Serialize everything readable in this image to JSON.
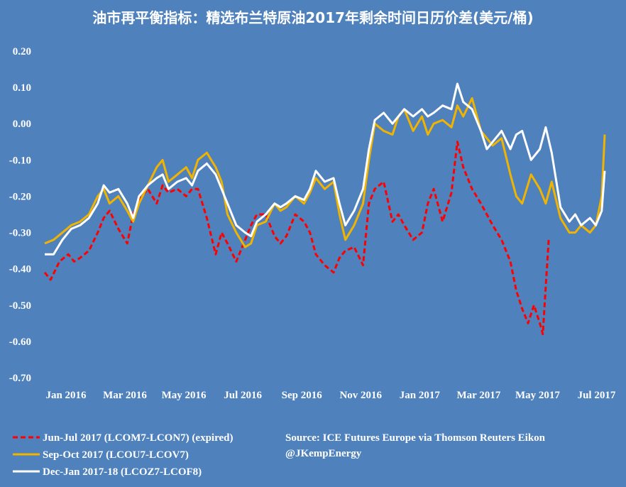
{
  "chart_data": {
    "type": "line",
    "title": "油市再平衡指标：精选布兰特原油2017年剩余时间日历价差(美元/桶)",
    "ylim": [
      -0.7,
      0.2
    ],
    "yticks": [
      "0.20",
      "0.10",
      "0.00",
      "-0.10",
      "-0.20",
      "-0.30",
      "-0.40",
      "-0.50",
      "-0.60",
      "-0.70"
    ],
    "ytick_values": [
      0.2,
      0.1,
      0.0,
      -0.1,
      -0.2,
      -0.3,
      -0.4,
      -0.5,
      -0.6,
      -0.7
    ],
    "xlim": [
      0,
      19
    ],
    "xticks": [
      "Jan 2016",
      "Mar 2016",
      "May 2016",
      "Jul 2016",
      "Sep 2016",
      "Nov 2016",
      "Jan 2017",
      "Mar 2017",
      "May 2017",
      "Jul 2017"
    ],
    "xtick_positions": [
      0,
      2,
      4,
      6,
      8,
      10,
      12,
      14,
      16,
      18
    ],
    "grid": false,
    "legend_position": "bottom-left",
    "series": [
      {
        "name": "Jun-Jul 2017 (LCOM7-LCON7) (expired)",
        "color": "#ff0000",
        "dash": true,
        "x": [
          0,
          0.2,
          0.5,
          0.8,
          1.0,
          1.2,
          1.5,
          1.8,
          2.0,
          2.2,
          2.5,
          2.8,
          3.0,
          3.2,
          3.5,
          3.8,
          4.0,
          4.2,
          4.5,
          4.8,
          5.0,
          5.2,
          5.5,
          5.8,
          6.0,
          6.2,
          6.5,
          6.8,
          7.0,
          7.2,
          7.5,
          7.8,
          8.0,
          8.2,
          8.5,
          8.8,
          9.0,
          9.2,
          9.5,
          9.8,
          10.0,
          10.2,
          10.5,
          10.8,
          11.0,
          11.2,
          11.5,
          11.8,
          12.0,
          12.2,
          12.5,
          12.8,
          13.0,
          13.2,
          13.5,
          13.8,
          14.0,
          14.2,
          14.5,
          14.8,
          15.0,
          15.2,
          15.5,
          15.8,
          16.0,
          16.2,
          16.4,
          16.6,
          16.8,
          16.9,
          17.0,
          17.1
        ],
        "y": [
          -0.41,
          -0.43,
          -0.38,
          -0.36,
          -0.38,
          -0.37,
          -0.35,
          -0.3,
          -0.26,
          -0.24,
          -0.29,
          -0.33,
          -0.25,
          -0.21,
          -0.18,
          -0.22,
          -0.17,
          -0.19,
          -0.18,
          -0.2,
          -0.18,
          -0.18,
          -0.26,
          -0.36,
          -0.3,
          -0.33,
          -0.38,
          -0.32,
          -0.28,
          -0.25,
          -0.25,
          -0.31,
          -0.33,
          -0.31,
          -0.25,
          -0.27,
          -0.3,
          -0.36,
          -0.39,
          -0.41,
          -0.37,
          -0.35,
          -0.34,
          -0.39,
          -0.22,
          -0.18,
          -0.16,
          -0.27,
          -0.25,
          -0.28,
          -0.32,
          -0.3,
          -0.22,
          -0.18,
          -0.27,
          -0.19,
          -0.05,
          -0.12,
          -0.18,
          -0.22,
          -0.25,
          -0.28,
          -0.32,
          -0.38,
          -0.46,
          -0.51,
          -0.55,
          -0.5,
          -0.55,
          -0.58,
          -0.45,
          -0.32
        ]
      },
      {
        "name": "Sep-Oct 2017 (LCOU7-LCOV7)",
        "color": "#f0b400",
        "dash": false,
        "x": [
          0,
          0.3,
          0.6,
          0.9,
          1.2,
          1.5,
          1.8,
          2.0,
          2.2,
          2.5,
          2.8,
          3.0,
          3.2,
          3.5,
          3.8,
          4.0,
          4.2,
          4.5,
          4.8,
          5.0,
          5.2,
          5.5,
          5.8,
          6.0,
          6.2,
          6.5,
          6.8,
          7.0,
          7.2,
          7.5,
          7.8,
          8.0,
          8.2,
          8.5,
          8.8,
          9.0,
          9.2,
          9.5,
          9.8,
          10.0,
          10.2,
          10.5,
          10.8,
          11.0,
          11.2,
          11.5,
          11.8,
          12.0,
          12.2,
          12.5,
          12.8,
          13.0,
          13.2,
          13.5,
          13.8,
          14.0,
          14.2,
          14.5,
          14.8,
          15.0,
          15.2,
          15.5,
          15.8,
          16.0,
          16.2,
          16.5,
          16.8,
          17.0,
          17.2,
          17.5,
          17.8,
          18.0,
          18.2,
          18.5,
          18.7,
          18.9,
          19.0
        ],
        "y": [
          -0.33,
          -0.32,
          -0.3,
          -0.28,
          -0.27,
          -0.25,
          -0.2,
          -0.18,
          -0.22,
          -0.2,
          -0.24,
          -0.27,
          -0.22,
          -0.17,
          -0.12,
          -0.1,
          -0.16,
          -0.14,
          -0.12,
          -0.15,
          -0.1,
          -0.08,
          -0.12,
          -0.16,
          -0.25,
          -0.3,
          -0.34,
          -0.33,
          -0.28,
          -0.27,
          -0.22,
          -0.24,
          -0.23,
          -0.2,
          -0.22,
          -0.19,
          -0.15,
          -0.18,
          -0.16,
          -0.25,
          -0.32,
          -0.28,
          -0.22,
          -0.1,
          0.0,
          -0.02,
          -0.03,
          0.02,
          0.04,
          -0.02,
          0.02,
          -0.03,
          0.0,
          0.01,
          -0.01,
          0.05,
          0.02,
          0.07,
          -0.02,
          -0.04,
          -0.06,
          -0.04,
          -0.14,
          -0.2,
          -0.22,
          -0.14,
          -0.18,
          -0.22,
          -0.16,
          -0.26,
          -0.3,
          -0.3,
          -0.28,
          -0.3,
          -0.28,
          -0.2,
          -0.03
        ]
      },
      {
        "name": "Dec-Jan 2017-18 (LCOZ7-LCOF8)",
        "color": "#ffffff",
        "dash": false,
        "x": [
          0,
          0.3,
          0.6,
          0.9,
          1.2,
          1.5,
          1.8,
          2.0,
          2.2,
          2.5,
          2.8,
          3.0,
          3.2,
          3.5,
          3.8,
          4.0,
          4.2,
          4.5,
          4.8,
          5.0,
          5.2,
          5.5,
          5.8,
          6.0,
          6.2,
          6.5,
          6.8,
          7.0,
          7.2,
          7.5,
          7.8,
          8.0,
          8.2,
          8.5,
          8.8,
          9.0,
          9.2,
          9.5,
          9.8,
          10.0,
          10.2,
          10.5,
          10.8,
          11.0,
          11.2,
          11.5,
          11.8,
          12.0,
          12.2,
          12.5,
          12.8,
          13.0,
          13.2,
          13.5,
          13.8,
          14.0,
          14.2,
          14.5,
          14.8,
          15.0,
          15.2,
          15.5,
          15.8,
          16.0,
          16.2,
          16.5,
          16.8,
          17.0,
          17.2,
          17.5,
          17.8,
          18.0,
          18.2,
          18.5,
          18.7,
          18.9,
          19.0
        ],
        "y": [
          -0.36,
          -0.36,
          -0.32,
          -0.29,
          -0.28,
          -0.26,
          -0.22,
          -0.17,
          -0.19,
          -0.18,
          -0.22,
          -0.26,
          -0.2,
          -0.17,
          -0.15,
          -0.14,
          -0.18,
          -0.16,
          -0.15,
          -0.17,
          -0.13,
          -0.11,
          -0.14,
          -0.18,
          -0.22,
          -0.28,
          -0.3,
          -0.31,
          -0.27,
          -0.25,
          -0.22,
          -0.23,
          -0.22,
          -0.2,
          -0.21,
          -0.18,
          -0.13,
          -0.16,
          -0.15,
          -0.22,
          -0.28,
          -0.24,
          -0.18,
          -0.07,
          0.01,
          0.03,
          0.0,
          0.02,
          0.04,
          0.02,
          0.04,
          0.02,
          0.03,
          0.05,
          0.04,
          0.11,
          0.06,
          0.04,
          -0.02,
          -0.07,
          -0.05,
          -0.02,
          -0.07,
          -0.03,
          -0.02,
          -0.1,
          -0.07,
          -0.01,
          -0.08,
          -0.23,
          -0.27,
          -0.25,
          -0.28,
          -0.26,
          -0.28,
          -0.24,
          -0.13
        ]
      }
    ],
    "annotation_source": "Source: ICE Futures Europe via Thomson Reuters Eikon",
    "annotation_author": "@JKempEnergy"
  }
}
